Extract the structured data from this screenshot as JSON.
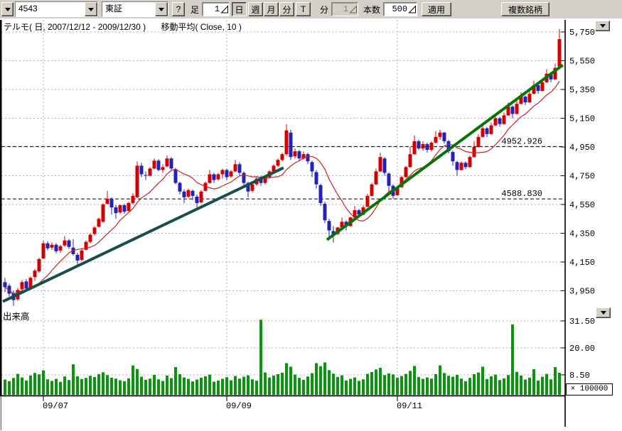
{
  "toolbar": {
    "symbol_value": "4543",
    "exchange_value": "東証",
    "help_label": "?",
    "bar_type_label": "足",
    "bar_interval_value": "1",
    "period_buttons": [
      "日",
      "週",
      "月",
      "分",
      "T"
    ],
    "active_period": "日",
    "minute_label": "分",
    "minute_value": "1",
    "bar_count_label": "本数",
    "bar_count_value": "500",
    "apply_label": "適用",
    "multi_symbol_label": "複数銘柄"
  },
  "header": {
    "series_title": "テルモ( 日, 2007/12/12 - 2009/12/30 )",
    "ma_title": "移動平均( Close, 10 )"
  },
  "chart_data": {
    "type": "candlestick",
    "symbol": "4543",
    "name": "テルモ",
    "exchange": "東証",
    "interval": "日",
    "date_range": "2007/12/12 - 2009/12/30",
    "ma": {
      "source": "Close",
      "period": 10,
      "color": "#cc2222"
    },
    "price_axis": {
      "side": "right",
      "range_shown": [
        3810,
        5830
      ],
      "ticks": [
        {
          "value": 5750,
          "label": "5,750"
        },
        {
          "value": 5550,
          "label": "5,550"
        },
        {
          "value": 5350,
          "label": "5,350"
        },
        {
          "value": 5150,
          "label": "5,150"
        },
        {
          "value": 4950,
          "label": "4,950"
        },
        {
          "value": 4750,
          "label": "4,750"
        },
        {
          "value": 4550,
          "label": "4,550"
        },
        {
          "value": 4350,
          "label": "4,350"
        },
        {
          "value": 4150,
          "label": "4,150"
        },
        {
          "value": 3950,
          "label": "3,950"
        }
      ]
    },
    "volume_axis": {
      "side": "right",
      "pane_label": "出来高",
      "unit_multiplier": 100000,
      "multiplier_label": "× 100000",
      "range_shown": [
        0,
        34
      ],
      "ticks": [
        {
          "value": 31.5,
          "label": "31.50"
        },
        {
          "value": 20.0,
          "label": "20.00"
        },
        {
          "value": 8.5,
          "label": "8.50"
        }
      ]
    },
    "x_axis": {
      "ticks": [
        {
          "index": 9,
          "label": "09/07"
        },
        {
          "index": 52,
          "label": "09/09"
        },
        {
          "index": 92,
          "label": "09/11"
        }
      ]
    },
    "annotations": {
      "hlines": [
        {
          "value": 4952.926,
          "label": "4952.926"
        },
        {
          "value": 4588.83,
          "label": "4588.830"
        }
      ],
      "trendlines": [
        {
          "from": {
            "index": -0.5,
            "price": 3875
          },
          "to": {
            "index": 65.3,
            "price": 4805
          },
          "color": "#17504a"
        },
        {
          "from": {
            "index": 75.5,
            "price": 4305
          },
          "to": {
            "index": 130.8,
            "price": 5520
          },
          "color": "#067506"
        }
      ]
    },
    "colors": {
      "up": "#d40000",
      "down": "#2222bb",
      "volume": "#0a9410",
      "grid": "#b0b0b0",
      "annotation": "#000000",
      "axis": "#000000",
      "background": "#ffffff"
    },
    "candles": [
      [
        4010,
        4040,
        3940,
        3975
      ],
      [
        3985,
        4000,
        3910,
        3930
      ],
      [
        3935,
        3950,
        3845,
        3885
      ],
      [
        3890,
        3970,
        3880,
        3955
      ],
      [
        3960,
        4025,
        3945,
        4010
      ],
      [
        4015,
        4030,
        3950,
        3965
      ],
      [
        3970,
        4050,
        3960,
        4040
      ],
      [
        4045,
        4100,
        4020,
        4090
      ],
      [
        4085,
        4180,
        4075,
        4170
      ],
      [
        4175,
        4300,
        4170,
        4280
      ],
      [
        4280,
        4295,
        4230,
        4245
      ],
      [
        4250,
        4285,
        4235,
        4270
      ],
      [
        4270,
        4280,
        4210,
        4225
      ],
      [
        4230,
        4270,
        4215,
        4260
      ],
      [
        4265,
        4330,
        4255,
        4300
      ],
      [
        4300,
        4310,
        4240,
        4255
      ],
      [
        4250,
        4310,
        4195,
        4205
      ],
      [
        4200,
        4215,
        4120,
        4160
      ],
      [
        4165,
        4240,
        4155,
        4230
      ],
      [
        4235,
        4300,
        4230,
        4290
      ],
      [
        4290,
        4350,
        4280,
        4340
      ],
      [
        4345,
        4400,
        4335,
        4390
      ],
      [
        4395,
        4460,
        4390,
        4450
      ],
      [
        4430,
        4560,
        4425,
        4550
      ],
      [
        4555,
        4645,
        4550,
        4590
      ],
      [
        4590,
        4600,
        4480,
        4530
      ],
      [
        4530,
        4545,
        4450,
        4490
      ],
      [
        4495,
        4550,
        4485,
        4545
      ],
      [
        4545,
        4555,
        4485,
        4500
      ],
      [
        4505,
        4570,
        4500,
        4560
      ],
      [
        4560,
        4630,
        4550,
        4610
      ],
      [
        4600,
        4850,
        4595,
        4820
      ],
      [
        4820,
        4840,
        4740,
        4760
      ],
      [
        4755,
        4780,
        4720,
        4750
      ],
      [
        4750,
        4810,
        4745,
        4800
      ],
      [
        4800,
        4870,
        4795,
        4855
      ],
      [
        4855,
        4865,
        4780,
        4790
      ],
      [
        4790,
        4830,
        4770,
        4810
      ],
      [
        4815,
        4890,
        4810,
        4870
      ],
      [
        4870,
        4880,
        4790,
        4800
      ],
      [
        4795,
        4805,
        4690,
        4700
      ],
      [
        4700,
        4710,
        4620,
        4640
      ],
      [
        4640,
        4655,
        4560,
        4600
      ],
      [
        4605,
        4660,
        4595,
        4650
      ],
      [
        4645,
        4655,
        4580,
        4610
      ],
      [
        4605,
        4620,
        4530,
        4560
      ],
      [
        4565,
        4650,
        4560,
        4640
      ],
      [
        4645,
        4710,
        4640,
        4700
      ],
      [
        4700,
        4790,
        4695,
        4760
      ],
      [
        4760,
        4770,
        4700,
        4720
      ],
      [
        4725,
        4770,
        4715,
        4760
      ],
      [
        4760,
        4800,
        4730,
        4790
      ],
      [
        4790,
        4800,
        4720,
        4740
      ],
      [
        4745,
        4790,
        4735,
        4780
      ],
      [
        4780,
        4860,
        4775,
        4830
      ],
      [
        4830,
        4845,
        4750,
        4770
      ],
      [
        4770,
        4780,
        4680,
        4700
      ],
      [
        4700,
        4710,
        4600,
        4640
      ],
      [
        4645,
        4700,
        4635,
        4690
      ],
      [
        4690,
        4745,
        4680,
        4730
      ],
      [
        4730,
        4750,
        4680,
        4700
      ],
      [
        4700,
        4745,
        4690,
        4740
      ],
      [
        4740,
        4790,
        4730,
        4780
      ],
      [
        4780,
        4830,
        4770,
        4820
      ],
      [
        4820,
        4870,
        4810,
        4860
      ],
      [
        4860,
        4910,
        4850,
        4900
      ],
      [
        4900,
        5108,
        4890,
        5065
      ],
      [
        5050,
        5070,
        4860,
        4880
      ],
      [
        4885,
        4940,
        4870,
        4920
      ],
      [
        4920,
        4930,
        4850,
        4870
      ],
      [
        4870,
        4920,
        4860,
        4900
      ],
      [
        4900,
        4910,
        4830,
        4850
      ],
      [
        4845,
        4855,
        4740,
        4780
      ],
      [
        4775,
        4790,
        4660,
        4690
      ],
      [
        4685,
        4695,
        4540,
        4560
      ],
      [
        4555,
        4570,
        4420,
        4440
      ],
      [
        4435,
        4450,
        4310,
        4370
      ],
      [
        4365,
        4400,
        4285,
        4340
      ],
      [
        4345,
        4395,
        4335,
        4390
      ],
      [
        4390,
        4460,
        4385,
        4430
      ],
      [
        4430,
        4440,
        4370,
        4400
      ],
      [
        4400,
        4465,
        4395,
        4460
      ],
      [
        4460,
        4540,
        4455,
        4510
      ],
      [
        4510,
        4520,
        4460,
        4480
      ],
      [
        4480,
        4545,
        4475,
        4530
      ],
      [
        4535,
        4625,
        4530,
        4610
      ],
      [
        4610,
        4700,
        4605,
        4690
      ],
      [
        4690,
        4800,
        4685,
        4780
      ],
      [
        4780,
        4910,
        4775,
        4880
      ],
      [
        4870,
        4880,
        4750,
        4770
      ],
      [
        4765,
        4775,
        4640,
        4680
      ],
      [
        4680,
        4690,
        4590,
        4610
      ],
      [
        4615,
        4680,
        4610,
        4670
      ],
      [
        4670,
        4750,
        4665,
        4740
      ],
      [
        4740,
        4820,
        4735,
        4810
      ],
      [
        4810,
        4950,
        4805,
        4900
      ],
      [
        4900,
        5030,
        4895,
        4990
      ],
      [
        4990,
        5000,
        4930,
        4940
      ],
      [
        4940,
        4990,
        4925,
        4970
      ],
      [
        4970,
        4980,
        4910,
        4930
      ],
      [
        4930,
        4990,
        4920,
        4980
      ],
      [
        4980,
        5060,
        4975,
        5020
      ],
      [
        5020,
        5070,
        5000,
        5050
      ],
      [
        5050,
        5055,
        4975,
        4990
      ],
      [
        4990,
        5000,
        4905,
        4920
      ],
      [
        4915,
        4925,
        4820,
        4850
      ],
      [
        4845,
        4855,
        4750,
        4790
      ],
      [
        4790,
        4850,
        4785,
        4840
      ],
      [
        4840,
        4850,
        4795,
        4810
      ],
      [
        4810,
        4890,
        4805,
        4880
      ],
      [
        4880,
        4990,
        4875,
        4950
      ],
      [
        4950,
        5040,
        4945,
        5020
      ],
      [
        5020,
        5110,
        5015,
        5080
      ],
      [
        5080,
        5090,
        5020,
        5040
      ],
      [
        5040,
        5120,
        5035,
        5100
      ],
      [
        5100,
        5180,
        5095,
        5150
      ],
      [
        5150,
        5160,
        5090,
        5110
      ],
      [
        5110,
        5190,
        5105,
        5170
      ],
      [
        5170,
        5260,
        5165,
        5230
      ],
      [
        5230,
        5240,
        5150,
        5180
      ],
      [
        5180,
        5270,
        5175,
        5250
      ],
      [
        5250,
        5330,
        5245,
        5300
      ],
      [
        5300,
        5310,
        5240,
        5260
      ],
      [
        5260,
        5340,
        5255,
        5320
      ],
      [
        5320,
        5410,
        5315,
        5380
      ],
      [
        5380,
        5390,
        5320,
        5340
      ],
      [
        5340,
        5420,
        5335,
        5400
      ],
      [
        5400,
        5490,
        5395,
        5460
      ],
      [
        5460,
        5470,
        5400,
        5420
      ],
      [
        5420,
        5530,
        5415,
        5500
      ],
      [
        5510,
        5770,
        5500,
        5700
      ]
    ],
    "volumes": [
      6.5,
      5.8,
      7.2,
      8.9,
      7.4,
      6.1,
      8.2,
      9.3,
      8.7,
      10.4,
      6.6,
      5.9,
      6.8,
      5.5,
      7.8,
      6.3,
      13.0,
      7.9,
      6.7,
      7.2,
      8.1,
      7.6,
      8.8,
      9.6,
      8.4,
      7.3,
      6.9,
      6.2,
      5.8,
      7.0,
      12.5,
      11.0,
      7.7,
      6.4,
      6.9,
      8.5,
      6.6,
      5.9,
      8.2,
      7.1,
      11.8,
      8.8,
      7.4,
      6.8,
      5.7,
      6.5,
      7.3,
      7.9,
      8.6,
      5.6,
      6.1,
      6.8,
      7.5,
      6.2,
      8.0,
      6.9,
      7.7,
      8.3,
      6.6,
      6.0,
      32.0,
      9.5,
      7.4,
      8.2,
      8.8,
      9.4,
      13.5,
      12.0,
      8.6,
      7.2,
      6.4,
      7.8,
      9.2,
      13.5,
      12.2,
      13.8,
      10.5,
      9.0,
      7.6,
      8.3,
      6.1,
      6.8,
      7.4,
      5.9,
      6.6,
      8.9,
      9.7,
      10.8,
      11.5,
      8.4,
      9.1,
      8.7,
      7.3,
      8.0,
      8.9,
      10.2,
      12.3,
      7.6,
      6.8,
      7.4,
      6.9,
      8.8,
      12.5,
      9.3,
      8.1,
      7.7,
      8.5,
      6.9,
      5.8,
      7.2,
      8.8,
      9.5,
      12.0,
      6.7,
      7.9,
      8.6,
      6.3,
      7.0,
      8.4,
      30.0,
      9.8,
      8.2,
      6.5,
      7.3,
      10.9,
      6.1,
      7.7,
      8.9,
      6.6,
      11.8,
      9.4
    ]
  }
}
